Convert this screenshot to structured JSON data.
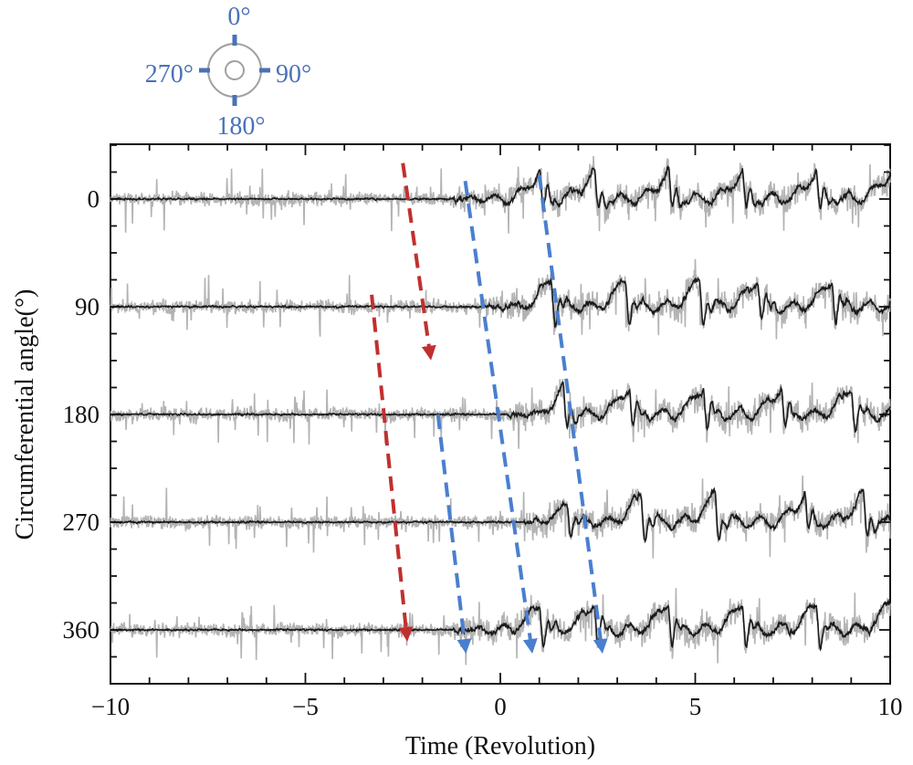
{
  "chart_data": {
    "type": "line",
    "title": "",
    "xlabel": "Time (Revolution)",
    "ylabel": "Circumferential angle(°)",
    "xlim": [
      -10,
      10
    ],
    "x_ticks": [
      -10,
      -5,
      0,
      5,
      10
    ],
    "x_tick_labels": [
      "−10",
      "−5",
      "0",
      "5",
      "10"
    ],
    "y_ticks": [
      0,
      90,
      180,
      270,
      360
    ],
    "y_tick_labels": [
      "0",
      "90",
      "180",
      "270",
      "360"
    ],
    "y_inverted": true,
    "grid": false,
    "series": [
      {
        "angle": 0,
        "onset": -1.2,
        "peaks": [
          1.0,
          2.4,
          4.3,
          6.2,
          8.1,
          10.0
        ]
      },
      {
        "angle": 90,
        "onset": -0.5,
        "peaks": [
          1.3,
          3.2,
          5.1,
          6.6,
          8.5
        ]
      },
      {
        "angle": 180,
        "onset": 0.2,
        "peaks": [
          1.6,
          3.3,
          5.2,
          7.2,
          9.0
        ]
      },
      {
        "angle": 270,
        "onset": 0.6,
        "peaks": [
          1.7,
          3.6,
          5.5,
          7.8,
          9.3
        ]
      },
      {
        "angle": 360,
        "onset": -1.2,
        "peaks": [
          1.0,
          2.4,
          4.3,
          6.2,
          8.1,
          10.0
        ]
      }
    ],
    "annotations": [
      {
        "type": "arrow",
        "color": "#c0302e",
        "from": [
          -2.5,
          -30
        ],
        "to": [
          -1.8,
          130
        ]
      },
      {
        "type": "arrow",
        "color": "#c0302e",
        "from": [
          -3.3,
          80
        ],
        "to": [
          -2.4,
          365
        ]
      },
      {
        "type": "arrow",
        "color": "#4a7fcf",
        "from": [
          -0.9,
          -15
        ],
        "to": [
          0.8,
          375
        ]
      },
      {
        "type": "arrow",
        "color": "#4a7fcf",
        "from": [
          1.0,
          -20
        ],
        "to": [
          2.6,
          375
        ]
      },
      {
        "type": "arrow",
        "color": "#4a7fcf",
        "from": [
          -1.6,
          180
        ],
        "to": [
          -0.9,
          375
        ]
      }
    ],
    "compass": {
      "labels": [
        "0°",
        "90°",
        "180°",
        "270°"
      ]
    },
    "colors": {
      "raw": "#b3b3b3",
      "filtered": "#1a1a1a",
      "red_arrow": "#c0302e",
      "blue_arrow": "#4a7fcf",
      "compass": "#4a72b8"
    }
  }
}
